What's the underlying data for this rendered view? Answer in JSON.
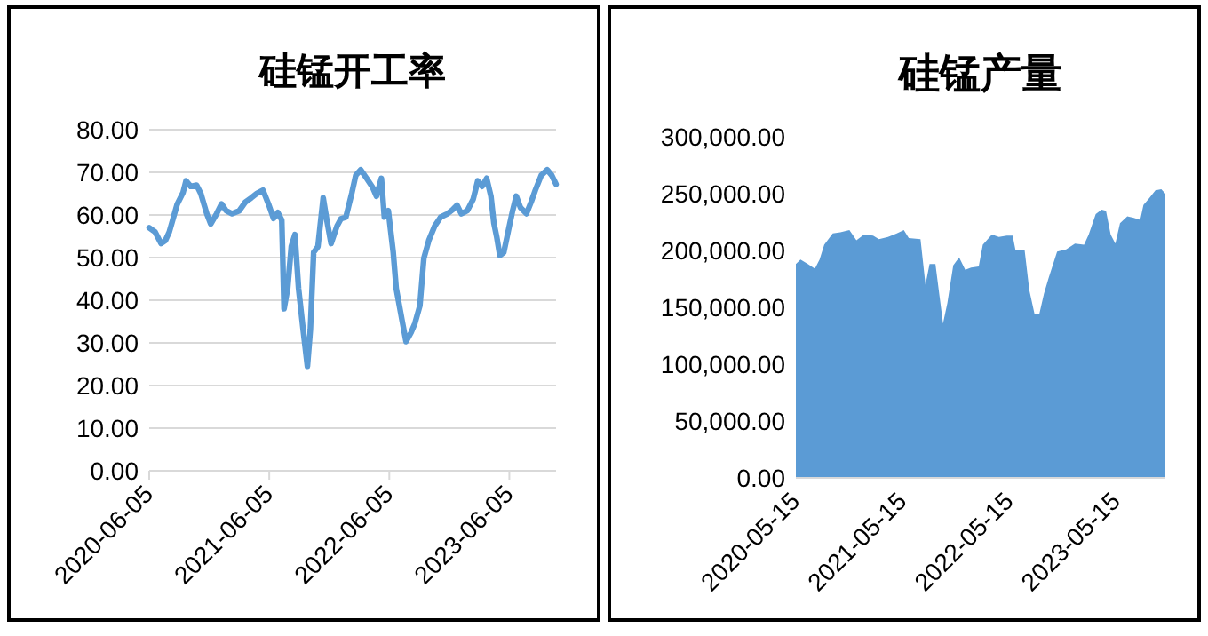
{
  "chart_data": [
    {
      "type": "line",
      "title": "硅锰开工率",
      "grid": "y",
      "xlim": [
        "2020-06-05",
        "2023-10-25"
      ],
      "xticks": [
        "2020-06-05",
        "2021-06-05",
        "2022-06-05",
        "2023-06-05"
      ],
      "ylim": [
        0,
        80
      ],
      "yticks": [
        {
          "value": 0,
          "label": "0.00"
        },
        {
          "value": 10,
          "label": "10.00"
        },
        {
          "value": 20,
          "label": "20.00"
        },
        {
          "value": 30,
          "label": "30.00"
        },
        {
          "value": 40,
          "label": "40.00"
        },
        {
          "value": 50,
          "label": "50.00"
        },
        {
          "value": 60,
          "label": "60.00"
        },
        {
          "value": 70,
          "label": "70.00"
        },
        {
          "value": 80,
          "label": "80.00"
        }
      ],
      "x": [
        "2020-06-05",
        "2020-06-23",
        "2020-07-11",
        "2020-07-24",
        "2020-08-05",
        "2020-08-16",
        "2020-08-29",
        "2020-09-16",
        "2020-09-25",
        "2020-10-09",
        "2020-10-27",
        "2020-11-09",
        "2020-11-27",
        "2020-12-09",
        "2020-12-27",
        "2021-01-11",
        "2021-01-25",
        "2021-02-12",
        "2021-03-06",
        "2021-03-24",
        "2021-04-11",
        "2021-04-29",
        "2021-05-17",
        "2021-06-04",
        "2021-06-18",
        "2021-07-01",
        "2021-07-13",
        "2021-07-20",
        "2021-07-31",
        "2021-08-11",
        "2021-08-22",
        "2021-09-02",
        "2021-09-16",
        "2021-09-29",
        "2021-10-08",
        "2021-10-18",
        "2021-10-31",
        "2021-11-16",
        "2021-11-27",
        "2021-12-10",
        "2021-12-28",
        "2022-01-09",
        "2022-01-24",
        "2022-02-11",
        "2022-02-23",
        "2022-03-10",
        "2022-03-28",
        "2022-04-15",
        "2022-04-27",
        "2022-05-12",
        "2022-05-21",
        "2022-06-02",
        "2022-06-17",
        "2022-06-26",
        "2022-07-14",
        "2022-07-26",
        "2022-08-10",
        "2022-08-22",
        "2022-09-06",
        "2022-09-18",
        "2022-10-03",
        "2022-10-21",
        "2022-11-08",
        "2022-11-29",
        "2022-12-14",
        "2022-12-28",
        "2023-01-10",
        "2023-01-28",
        "2023-02-15",
        "2023-03-01",
        "2023-03-14",
        "2023-03-28",
        "2023-04-10",
        "2023-04-19",
        "2023-04-28",
        "2023-05-07",
        "2023-05-19",
        "2023-06-03",
        "2023-06-15",
        "2023-06-26",
        "2023-07-09",
        "2023-07-27",
        "2023-08-10",
        "2023-08-23",
        "2023-09-10",
        "2023-09-28",
        "2023-10-12",
        "2023-10-25"
      ],
      "series": [
        {
          "color": "#5b9bd5",
          "values": [
            57,
            56,
            53.3,
            54,
            56,
            59,
            62.5,
            65.3,
            68,
            66.7,
            67,
            65,
            60.3,
            57.9,
            60.3,
            62.6,
            61,
            60.3,
            61,
            63,
            64,
            65.1,
            65.8,
            62.3,
            59.2,
            60.6,
            58.8,
            38,
            42.8,
            52.6,
            55.4,
            42.8,
            33.1,
            24.5,
            33.1,
            51.2,
            52.6,
            64,
            58.8,
            53.3,
            57.4,
            59.1,
            59.5,
            65.1,
            69.3,
            70.6,
            68.6,
            66.5,
            64.4,
            68.6,
            59.5,
            61,
            51.2,
            42.8,
            35.2,
            30.3,
            32.4,
            34.6,
            38.7,
            49.8,
            54,
            57.4,
            59.5,
            60.3,
            61.2,
            62.3,
            60.3,
            61,
            63.7,
            68,
            66.7,
            68.6,
            64.4,
            58.1,
            54.7,
            50.5,
            51.2,
            56.7,
            61,
            64.4,
            61.7,
            60.3,
            63,
            65.8,
            69.3,
            70.6,
            69.3,
            67.2
          ]
        }
      ]
    },
    {
      "type": "area",
      "title": "硅锰产量",
      "xlim": [
        "2020-05-15",
        "2023-10-30"
      ],
      "xticks": [
        "2020-05-15",
        "2021-05-15",
        "2022-05-15",
        "2023-05-15"
      ],
      "ylim": [
        0,
        300000
      ],
      "yticks": [
        {
          "value": 0,
          "label": "0.00"
        },
        {
          "value": 50000,
          "label": "50,000.00"
        },
        {
          "value": 100000,
          "label": "100,000.00"
        },
        {
          "value": 150000,
          "label": "150,000.00"
        },
        {
          "value": 200000,
          "label": "200,000.00"
        },
        {
          "value": 250000,
          "label": "250,000.00"
        },
        {
          "value": 300000,
          "label": "300,000.00"
        }
      ],
      "x": [
        "2020-05-15",
        "2020-05-31",
        "2020-06-25",
        "2020-07-19",
        "2020-08-04",
        "2020-08-20",
        "2020-09-18",
        "2020-10-14",
        "2020-11-14",
        "2020-12-08",
        "2021-01-03",
        "2021-02-03",
        "2021-02-23",
        "2021-03-26",
        "2021-04-25",
        "2021-05-19",
        "2021-06-05",
        "2021-07-15",
        "2021-08-01",
        "2021-08-15",
        "2021-09-04",
        "2021-09-18",
        "2021-09-30",
        "2021-10-15",
        "2021-11-04",
        "2021-11-24",
        "2021-12-15",
        "2022-01-04",
        "2022-01-30",
        "2022-02-13",
        "2022-03-16",
        "2022-04-09",
        "2022-05-06",
        "2022-05-26",
        "2022-06-05",
        "2022-07-06",
        "2022-07-22",
        "2022-08-09",
        "2022-08-25",
        "2022-09-10",
        "2022-09-25",
        "2022-10-15",
        "2022-10-25",
        "2022-11-25",
        "2022-12-25",
        "2023-01-25",
        "2023-02-10",
        "2023-03-06",
        "2023-03-26",
        "2023-04-10",
        "2023-04-26",
        "2023-05-12",
        "2023-05-28",
        "2023-06-22",
        "2023-07-12",
        "2023-08-05",
        "2023-08-16",
        "2023-09-05",
        "2023-09-26",
        "2023-10-16",
        "2023-10-30"
      ],
      "series": [
        {
          "color": "#5b9bd5",
          "values": [
            188000,
            192000,
            188000,
            184000,
            192000,
            205000,
            215000,
            216000,
            218000,
            209000,
            214000,
            213000,
            210000,
            212000,
            215000,
            218000,
            211000,
            210000,
            170000,
            188000,
            188000,
            160000,
            136000,
            154000,
            187000,
            194000,
            183000,
            185000,
            186000,
            205000,
            214000,
            212000,
            213000,
            213000,
            200000,
            200000,
            165000,
            144000,
            144000,
            162000,
            175000,
            191000,
            199000,
            201000,
            206000,
            205000,
            214000,
            232000,
            236000,
            235000,
            214000,
            206000,
            224000,
            230000,
            229000,
            227000,
            240000,
            246000,
            253000,
            254000,
            250000
          ]
        }
      ]
    }
  ]
}
